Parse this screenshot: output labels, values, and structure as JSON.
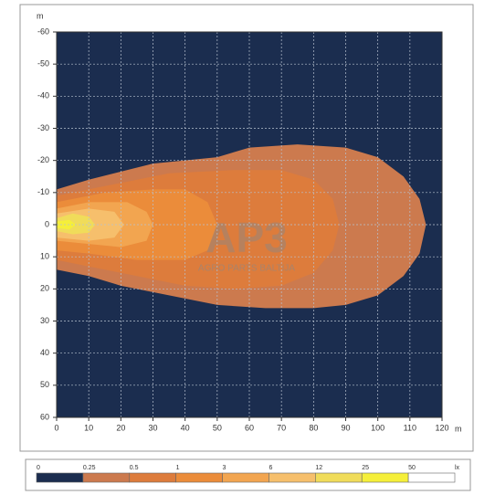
{
  "chart_data": {
    "type": "contour",
    "y_unit": "m",
    "x_unit": "m",
    "xlim": [
      0,
      120
    ],
    "ylim": [
      -60,
      60
    ],
    "xticks": [
      0,
      10,
      20,
      30,
      40,
      50,
      60,
      70,
      80,
      90,
      100,
      110,
      120
    ],
    "yticks": [
      -60,
      -50,
      -40,
      -30,
      -20,
      -10,
      0,
      10,
      20,
      30,
      40,
      50,
      60
    ],
    "grid": true,
    "background": "#1b2d4f",
    "watermark": {
      "title": "AP3",
      "subtitle": "AGRO PARTS BALTIJA"
    },
    "series": [
      {
        "color": "#cc7a4e",
        "x": [
          0,
          10,
          30,
          50,
          60,
          75,
          90,
          100,
          108,
          113,
          115,
          113,
          108,
          100,
          90,
          80,
          65,
          50,
          35,
          20,
          10,
          0
        ],
        "y": [
          -11,
          -14,
          -19,
          -21,
          -24,
          -25,
          -24,
          -21,
          -15,
          -8,
          0,
          9,
          16,
          22,
          25,
          26,
          26,
          25,
          22,
          19,
          16,
          14
        ]
      },
      {
        "color": "#dd7c3c",
        "x": [
          0,
          15,
          35,
          55,
          70,
          80,
          86,
          88,
          86,
          80,
          70,
          55,
          40,
          25,
          10,
          0
        ],
        "y": [
          -9,
          -12,
          -16,
          -17,
          -17,
          -14,
          -8,
          0,
          8,
          15,
          19,
          20,
          19,
          16,
          13,
          11
        ]
      },
      {
        "color": "#eb8c3a",
        "x": [
          0,
          15,
          30,
          40,
          47,
          50,
          47,
          40,
          25,
          10,
          0
        ],
        "y": [
          -7,
          -10,
          -11,
          -11,
          -7,
          0,
          8,
          11,
          11,
          9,
          8
        ]
      },
      {
        "color": "#f2a550",
        "x": [
          0,
          10,
          22,
          28,
          30,
          28,
          20,
          10,
          0
        ],
        "y": [
          -5,
          -7,
          -7,
          -4,
          0,
          5,
          7,
          6,
          5
        ]
      },
      {
        "color": "#f6bf6c",
        "x": [
          0,
          10,
          18,
          21,
          18,
          10,
          0
        ],
        "y": [
          -3.5,
          -5,
          -4,
          0,
          4,
          5,
          4
        ]
      },
      {
        "color": "#f0dc5a",
        "x": [
          0,
          5,
          10,
          12,
          10,
          5,
          0
        ],
        "y": [
          -2,
          -3.5,
          -2.5,
          0,
          2.5,
          3,
          2
        ]
      },
      {
        "color": "#f5ef3a",
        "x": [
          0,
          4,
          6,
          4,
          0
        ],
        "y": [
          -1,
          -1.5,
          0,
          1.5,
          1
        ]
      }
    ],
    "legend": {
      "levels": [
        0,
        0.25,
        0.5,
        1,
        3,
        6,
        12,
        25,
        50
      ],
      "unit": "lx",
      "colors": [
        "#1b2d4f",
        "#cc7a4e",
        "#dd7c3c",
        "#eb8c3a",
        "#f2a550",
        "#f6bf6c",
        "#f0dc5a",
        "#f5ef3a",
        "#ffffff"
      ]
    }
  }
}
